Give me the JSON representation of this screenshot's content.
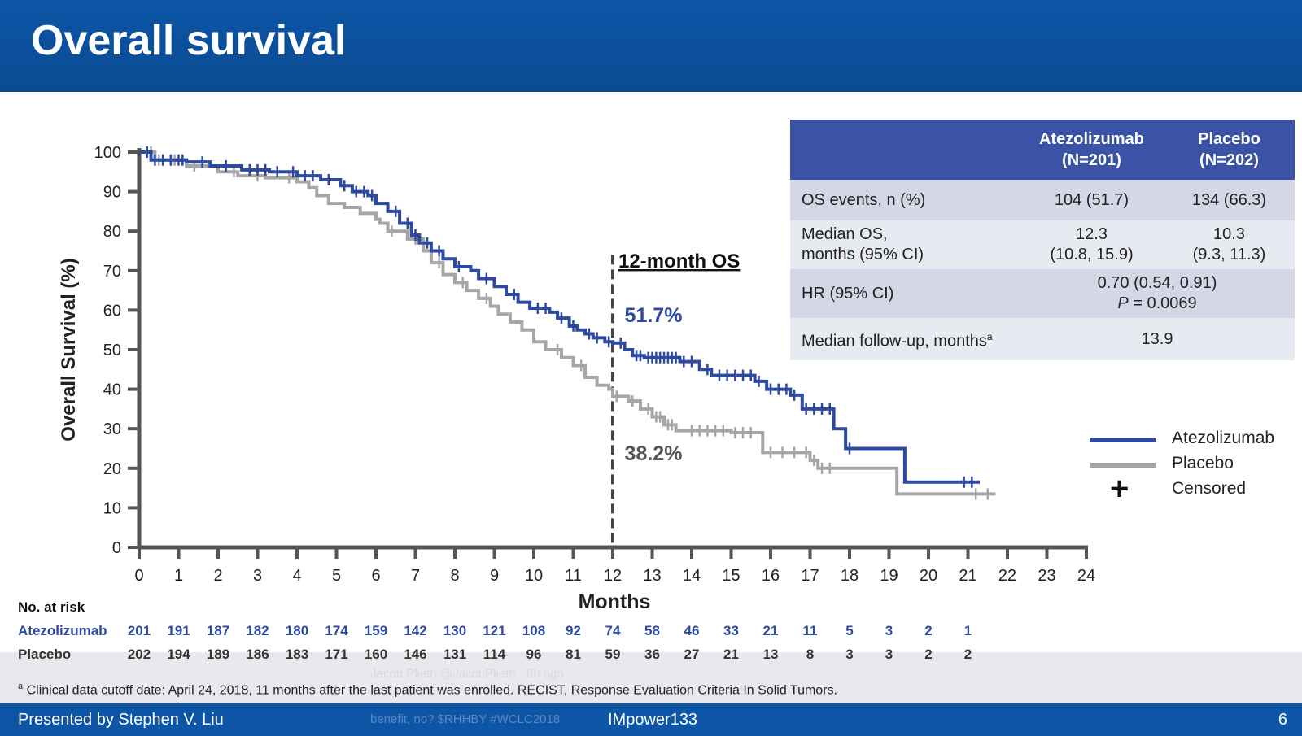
{
  "slide": {
    "title": "Overall survival",
    "presenter": "Presented by Stephen V. Liu",
    "study": "IMpower133",
    "page": "6",
    "footnote_marker": "a",
    "footnote": "Clinical data cutoff date: April 24, 2018, 11 months after the last patient was enrolled. RECIST, Response Evaluation Criteria In Solid Tumors.",
    "overlay_text_1": "Jacob Plieth @JacobPlieth · 8h ago",
    "overlay_text_2": "benefit, no? $RHHBY #WCLC2018"
  },
  "table": {
    "col_atezo_1": "Atezolizumab",
    "col_atezo_2": "(N=201)",
    "col_placebo_1": "Placebo",
    "col_placebo_2": "(N=202)",
    "rows": [
      {
        "label": "OS events, n (%)",
        "atezo": "104 (51.7)",
        "placebo": "134 (66.3)"
      },
      {
        "label_1": "Median OS,",
        "label_2": "months (95% CI)",
        "atezo_1": "12.3",
        "atezo_2": "(10.8, 15.9)",
        "placebo_1": "10.3",
        "placebo_2": "(9.3, 11.3)"
      },
      {
        "label": "HR (95% CI)",
        "value_1": "0.70 (0.54, 0.91)",
        "p_label": "P",
        "p_value": " = 0.0069"
      },
      {
        "label": "Median follow-up, months",
        "label_sup": "a",
        "value": "13.9"
      }
    ]
  },
  "legend": {
    "atezo": "Atezolizumab",
    "placebo": "Placebo",
    "censored": "Censored",
    "censored_symbol": "+"
  },
  "colors": {
    "atezo": "#2e4aa0",
    "placebo": "#a6a6a6",
    "header": "#0d56a6",
    "table_header": "#3a53a4"
  },
  "chart_data": {
    "type": "line",
    "title": "Overall survival",
    "xlabel": "Months",
    "ylabel": "Overall Survival (%)",
    "xlim": [
      0,
      24
    ],
    "ylim": [
      0,
      100
    ],
    "x_ticks": [
      0,
      1,
      2,
      3,
      4,
      5,
      6,
      7,
      8,
      9,
      10,
      11,
      12,
      13,
      14,
      15,
      16,
      17,
      18,
      19,
      20,
      21,
      22,
      23,
      24
    ],
    "y_ticks": [
      0,
      10,
      20,
      30,
      40,
      50,
      60,
      70,
      80,
      90,
      100
    ],
    "vline": {
      "x": 12,
      "label": "12-month OS"
    },
    "annotations": [
      {
        "series": "Atezolizumab",
        "text": "51.7%",
        "x": 12.3,
        "y": 57
      },
      {
        "series": "Placebo",
        "text": "38.2%",
        "x": 12.3,
        "y": 22
      }
    ],
    "series": [
      {
        "name": "Atezolizumab",
        "steps": [
          [
            0,
            100
          ],
          [
            0.3,
            98
          ],
          [
            1.2,
            97.5
          ],
          [
            1.8,
            96.5
          ],
          [
            2.6,
            95.5
          ],
          [
            3.3,
            95
          ],
          [
            4.0,
            94
          ],
          [
            4.6,
            93
          ],
          [
            5.1,
            91.5
          ],
          [
            5.4,
            90
          ],
          [
            5.8,
            89
          ],
          [
            6.0,
            87
          ],
          [
            6.3,
            85
          ],
          [
            6.6,
            82
          ],
          [
            6.9,
            79
          ],
          [
            7.1,
            77
          ],
          [
            7.4,
            75
          ],
          [
            7.7,
            73
          ],
          [
            8.0,
            71
          ],
          [
            8.4,
            70
          ],
          [
            8.6,
            68
          ],
          [
            9.0,
            66
          ],
          [
            9.3,
            64
          ],
          [
            9.6,
            62
          ],
          [
            9.9,
            60.5
          ],
          [
            10.4,
            59.5
          ],
          [
            10.6,
            58
          ],
          [
            10.9,
            56
          ],
          [
            11.1,
            55
          ],
          [
            11.3,
            54
          ],
          [
            11.5,
            53
          ],
          [
            11.8,
            52
          ],
          [
            12.0,
            51.7
          ],
          [
            12.3,
            50
          ],
          [
            12.5,
            48.5
          ],
          [
            12.8,
            48
          ],
          [
            13.7,
            47
          ],
          [
            14.2,
            45
          ],
          [
            14.5,
            43.5
          ],
          [
            15.6,
            42
          ],
          [
            15.9,
            40
          ],
          [
            16.5,
            38.5
          ],
          [
            16.8,
            35
          ],
          [
            17.6,
            30
          ],
          [
            17.9,
            25
          ],
          [
            19.4,
            16.5
          ],
          [
            21.3,
            16.5
          ]
        ],
        "censor_x": [
          0.2,
          0.4,
          0.6,
          0.8,
          1.0,
          1.1,
          1.6,
          2.2,
          2.8,
          3.0,
          3.2,
          3.5,
          3.9,
          4.2,
          4.4,
          4.8,
          5.2,
          5.5,
          5.7,
          5.9,
          6.5,
          6.8,
          7.0,
          7.3,
          7.6,
          8.1,
          8.8,
          9.5,
          10.1,
          10.3,
          10.7,
          11.0,
          11.4,
          11.6,
          11.9,
          12.2,
          12.6,
          12.7,
          12.9,
          13.0,
          13.1,
          13.2,
          13.3,
          13.4,
          13.5,
          13.6,
          13.8,
          14.0,
          14.4,
          14.7,
          14.9,
          15.1,
          15.3,
          15.5,
          15.7,
          16.0,
          16.2,
          16.4,
          16.6,
          16.9,
          17.1,
          17.3,
          17.5,
          18.0,
          20.9,
          21.1
        ]
      },
      {
        "name": "Placebo",
        "steps": [
          [
            0,
            100
          ],
          [
            0.4,
            98
          ],
          [
            1.2,
            96.5
          ],
          [
            2.0,
            95
          ],
          [
            2.5,
            94
          ],
          [
            3.2,
            93.5
          ],
          [
            4.0,
            92.5
          ],
          [
            4.3,
            91
          ],
          [
            4.5,
            89
          ],
          [
            4.8,
            87
          ],
          [
            5.2,
            86
          ],
          [
            5.6,
            84.5
          ],
          [
            6.0,
            83
          ],
          [
            6.1,
            82
          ],
          [
            6.3,
            80
          ],
          [
            6.8,
            78
          ],
          [
            7.2,
            75
          ],
          [
            7.4,
            72
          ],
          [
            7.7,
            69
          ],
          [
            8.0,
            67
          ],
          [
            8.3,
            65
          ],
          [
            8.6,
            63
          ],
          [
            8.9,
            61
          ],
          [
            9.1,
            59
          ],
          [
            9.4,
            57
          ],
          [
            9.7,
            55
          ],
          [
            10.0,
            52
          ],
          [
            10.3,
            50
          ],
          [
            10.7,
            48
          ],
          [
            11.0,
            46
          ],
          [
            11.3,
            43
          ],
          [
            11.6,
            41
          ],
          [
            11.9,
            40
          ],
          [
            12.0,
            38.2
          ],
          [
            12.4,
            37
          ],
          [
            12.7,
            35
          ],
          [
            13.0,
            33
          ],
          [
            13.3,
            31
          ],
          [
            13.6,
            29.5
          ],
          [
            15.0,
            29
          ],
          [
            15.8,
            24
          ],
          [
            17.0,
            22
          ],
          [
            17.2,
            20
          ],
          [
            19.2,
            13.5
          ],
          [
            21.7,
            13.5
          ]
        ],
        "censor_x": [
          0.3,
          0.5,
          0.9,
          1.4,
          2.4,
          3.0,
          3.8,
          6.4,
          7.0,
          7.6,
          8.2,
          8.8,
          10.6,
          11.2,
          12.1,
          12.5,
          12.9,
          13.1,
          13.2,
          13.4,
          13.5,
          14.0,
          14.2,
          14.4,
          14.6,
          14.8,
          15.1,
          15.3,
          15.5,
          16.0,
          16.3,
          16.6,
          16.9,
          17.1,
          17.3,
          17.5,
          21.2,
          21.5
        ]
      }
    ],
    "risk_table": {
      "title": "No. at risk",
      "rows": [
        {
          "name": "Atezolizumab",
          "values": [
            201,
            191,
            187,
            182,
            180,
            174,
            159,
            142,
            130,
            121,
            108,
            92,
            74,
            58,
            46,
            33,
            21,
            11,
            5,
            3,
            2,
            1
          ]
        },
        {
          "name": "Placebo",
          "values": [
            202,
            194,
            189,
            186,
            183,
            171,
            160,
            146,
            131,
            114,
            96,
            81,
            59,
            36,
            27,
            21,
            13,
            8,
            3,
            3,
            2,
            2
          ]
        }
      ]
    }
  }
}
